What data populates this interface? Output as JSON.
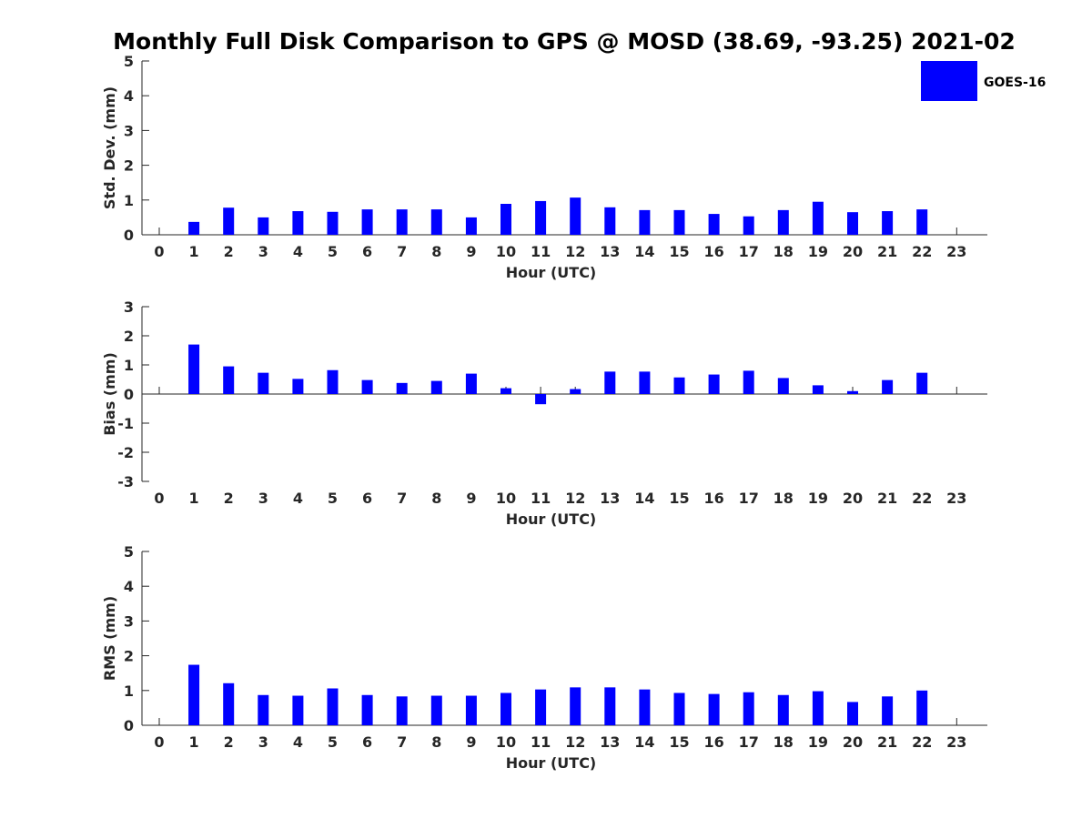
{
  "title": "Monthly Full Disk Comparison to GPS @ MOSD (38.69, -93.25) 2021-02",
  "legend": {
    "label": "GOES-16",
    "color": "#0000ff"
  },
  "chart_data": [
    {
      "type": "bar",
      "ylabel": "Std. Dev. (mm)",
      "xlabel": "Hour (UTC)",
      "ylim": [
        0,
        5
      ],
      "yticks": [
        0,
        1,
        2,
        3,
        4,
        5
      ],
      "categories": [
        0,
        1,
        2,
        3,
        4,
        5,
        6,
        7,
        8,
        9,
        10,
        11,
        12,
        13,
        14,
        15,
        16,
        17,
        18,
        19,
        20,
        21,
        22,
        23
      ],
      "series": [
        {
          "name": "GOES-16",
          "values": [
            null,
            0.37,
            0.78,
            0.5,
            0.68,
            0.66,
            0.73,
            0.73,
            0.73,
            0.5,
            0.89,
            0.97,
            1.07,
            0.79,
            0.71,
            0.71,
            0.6,
            0.53,
            0.71,
            0.95,
            0.65,
            0.68,
            0.73,
            null
          ]
        }
      ]
    },
    {
      "type": "bar",
      "ylabel": "Bias (mm)",
      "xlabel": "Hour (UTC)",
      "ylim": [
        -3,
        3
      ],
      "yticks": [
        -3,
        -2,
        -1,
        0,
        1,
        2,
        3
      ],
      "categories": [
        0,
        1,
        2,
        3,
        4,
        5,
        6,
        7,
        8,
        9,
        10,
        11,
        12,
        13,
        14,
        15,
        16,
        17,
        18,
        19,
        20,
        21,
        22,
        23
      ],
      "series": [
        {
          "name": "GOES-16",
          "values": [
            null,
            1.7,
            0.95,
            0.73,
            0.52,
            0.82,
            0.48,
            0.38,
            0.45,
            0.7,
            0.2,
            -0.35,
            0.17,
            0.77,
            0.77,
            0.57,
            0.67,
            0.8,
            0.55,
            0.3,
            0.1,
            0.48,
            0.73,
            null
          ]
        }
      ]
    },
    {
      "type": "bar",
      "ylabel": "RMS (mm)",
      "xlabel": "Hour (UTC)",
      "ylim": [
        0,
        5
      ],
      "yticks": [
        0,
        1,
        2,
        3,
        4,
        5
      ],
      "categories": [
        0,
        1,
        2,
        3,
        4,
        5,
        6,
        7,
        8,
        9,
        10,
        11,
        12,
        13,
        14,
        15,
        16,
        17,
        18,
        19,
        20,
        21,
        22,
        23
      ],
      "series": [
        {
          "name": "GOES-16",
          "values": [
            null,
            1.74,
            1.21,
            0.87,
            0.85,
            1.06,
            0.87,
            0.83,
            0.85,
            0.85,
            0.93,
            1.03,
            1.09,
            1.09,
            1.03,
            0.93,
            0.9,
            0.95,
            0.87,
            0.98,
            0.67,
            0.83,
            1.0,
            null
          ]
        }
      ]
    }
  ]
}
